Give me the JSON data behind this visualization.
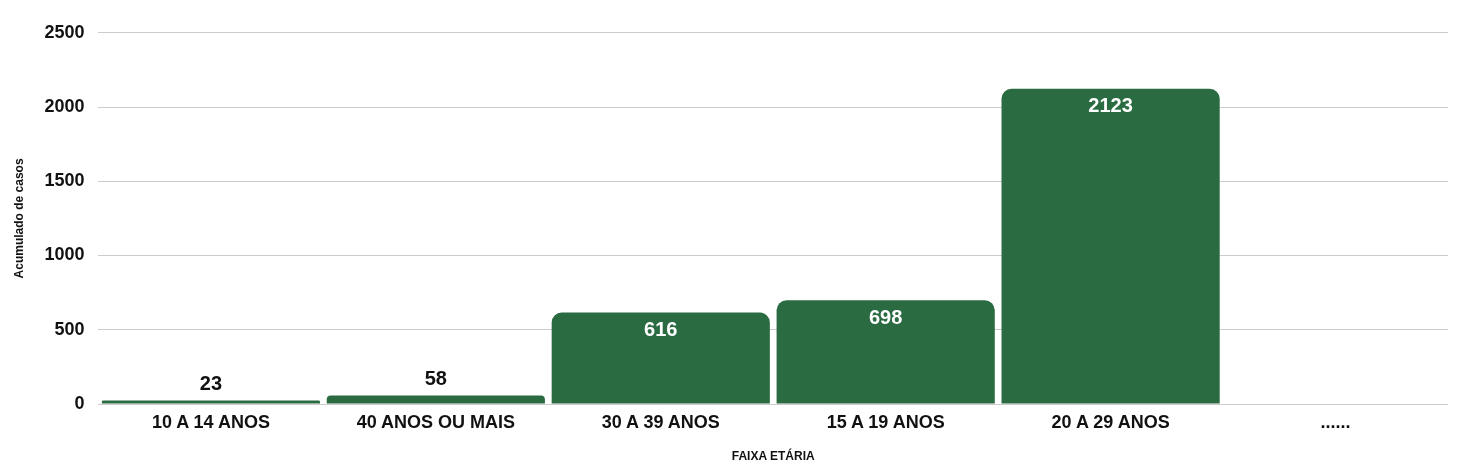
{
  "chart_data": {
    "type": "bar",
    "xlabel": "FAIXA ETÁRIA",
    "ylabel": "Acumulado de casos",
    "categories": [
      "10 A 14 ANOS",
      "40 ANOS OU MAIS",
      "30 A 39 ANOS",
      "15 A 19 ANOS",
      "20 A 29 ANOS",
      "......"
    ],
    "values": [
      23,
      58,
      616,
      698,
      2123,
      null
    ],
    "color": "#2a6b41",
    "ylim": [
      0,
      2500
    ],
    "yticks": [
      0,
      500,
      1000,
      1500,
      2000,
      2500
    ],
    "grid": "y",
    "legend": false,
    "data_labels": true
  }
}
